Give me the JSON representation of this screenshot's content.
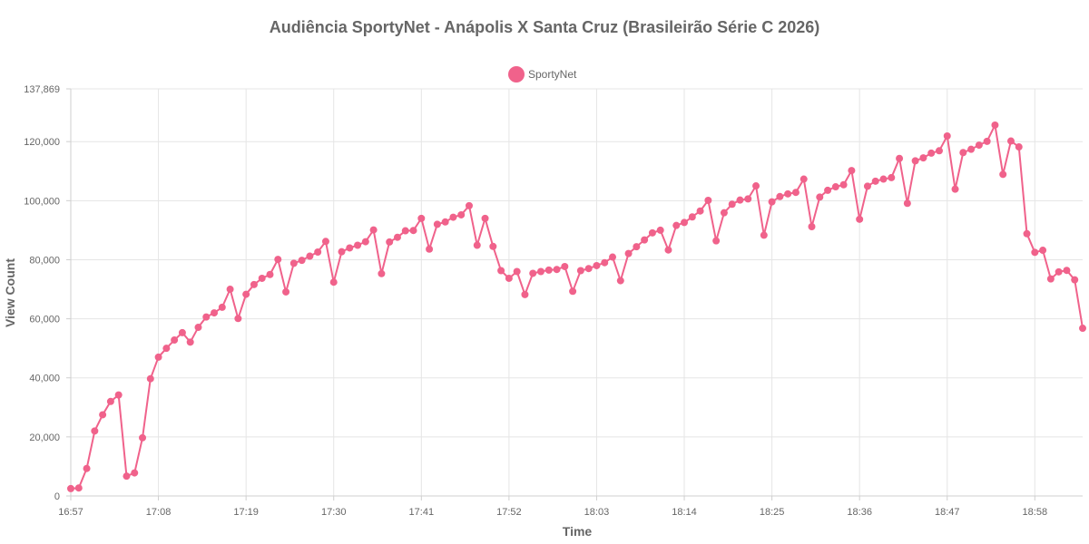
{
  "chart_data": {
    "type": "line",
    "title": "Audiência SportyNet - Anápolis X Santa Cruz (Brasileirão Série C 2026)",
    "xlabel": "Time",
    "ylabel": "View Count",
    "x_ticks": [
      "16:57",
      "17:08",
      "17:19",
      "17:30",
      "17:41",
      "17:52",
      "18:03",
      "18:14",
      "18:25",
      "18:36",
      "18:47",
      "18:58"
    ],
    "y_ticks": [
      "0",
      "20,000",
      "40,000",
      "60,000",
      "80,000",
      "100,000",
      "120,000",
      "137,869"
    ],
    "y_tick_values": [
      0,
      20000,
      40000,
      60000,
      80000,
      100000,
      120000,
      137869
    ],
    "ylim": [
      0,
      137869
    ],
    "x_start": "16:57",
    "x_end": "19:04",
    "grid": true,
    "legend": "top-center",
    "series": [
      {
        "name": "SportyNet",
        "color": "#f0628b",
        "values": [
          2500,
          2700,
          9300,
          22000,
          27500,
          32000,
          34200,
          6700,
          7800,
          19700,
          39700,
          47000,
          50000,
          52800,
          55300,
          52100,
          57100,
          60600,
          62000,
          63900,
          70000,
          60100,
          68300,
          71600,
          73700,
          75000,
          80100,
          69100,
          78800,
          79800,
          81200,
          82600,
          86200,
          72400,
          82700,
          84000,
          84900,
          86100,
          90100,
          75300,
          86000,
          87600,
          89800,
          89900,
          94000,
          83600,
          92000,
          92800,
          94400,
          95200,
          98300,
          84900,
          94000,
          84500,
          76300,
          73700,
          76000,
          68200,
          75400,
          76000,
          76500,
          76700,
          77700,
          69300,
          76300,
          77000,
          78000,
          79000,
          80900,
          72900,
          82100,
          84400,
          86700,
          89100,
          90000,
          83300,
          91600,
          92600,
          94500,
          96500,
          100100,
          86400,
          95900,
          98800,
          100200,
          100600,
          105000,
          88300,
          99600,
          101400,
          102300,
          102800,
          107300,
          91200,
          101200,
          103500,
          104700,
          105400,
          110200,
          93700,
          104900,
          106600,
          107300,
          107800,
          114300,
          99100,
          113500,
          114500,
          116100,
          116900,
          121900,
          103900,
          116300,
          117400,
          118800,
          120100,
          125600,
          108900,
          120200,
          118200,
          88800,
          82500,
          83200,
          73500,
          75900,
          76400,
          73200,
          56800
        ]
      }
    ]
  }
}
